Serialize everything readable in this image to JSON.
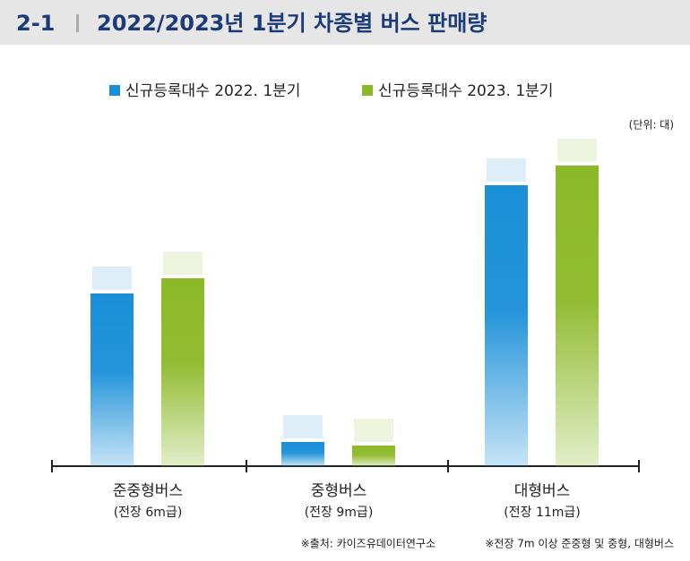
{
  "chart_data": {
    "type": "bar",
    "number": "2-1",
    "title": "2022/2023년 1분기 차종별 버스 판매량",
    "unit": "(단위: 대)",
    "categories": [
      "준중형버스",
      "중형버스",
      "대형버스"
    ],
    "category_notes": [
      "(전장 6m급)",
      "(전장 9m급)",
      "(전장 11m급)"
    ],
    "series": [
      {
        "name": "신규등록대수 2022. 1분기",
        "color": "#1a8fd8",
        "values": [
          193,
          27,
          314
        ]
      },
      {
        "name": "신규등록대수 2023. 1분기",
        "color": "#8cb928",
        "values": [
          210,
          23,
          336
        ]
      }
    ],
    "ylim": [
      0,
      380
    ],
    "notes": [
      "※출처: 카이즈유데이터연구소",
      "※전장 7m 이상 준중형 및 중형, 대형버스"
    ]
  }
}
